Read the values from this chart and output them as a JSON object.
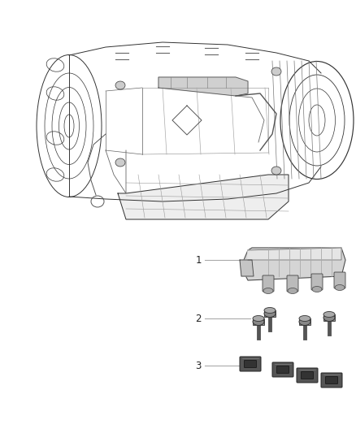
{
  "background_color": "#ffffff",
  "figsize": [
    4.38,
    5.33
  ],
  "dpi": 100,
  "label_1": "1",
  "label_2": "2",
  "label_3": "3",
  "line_color": "#aaaaaa",
  "text_color": "#222222",
  "font_size": 8.5,
  "edge_color": "#333333",
  "edge_lw": 0.7
}
